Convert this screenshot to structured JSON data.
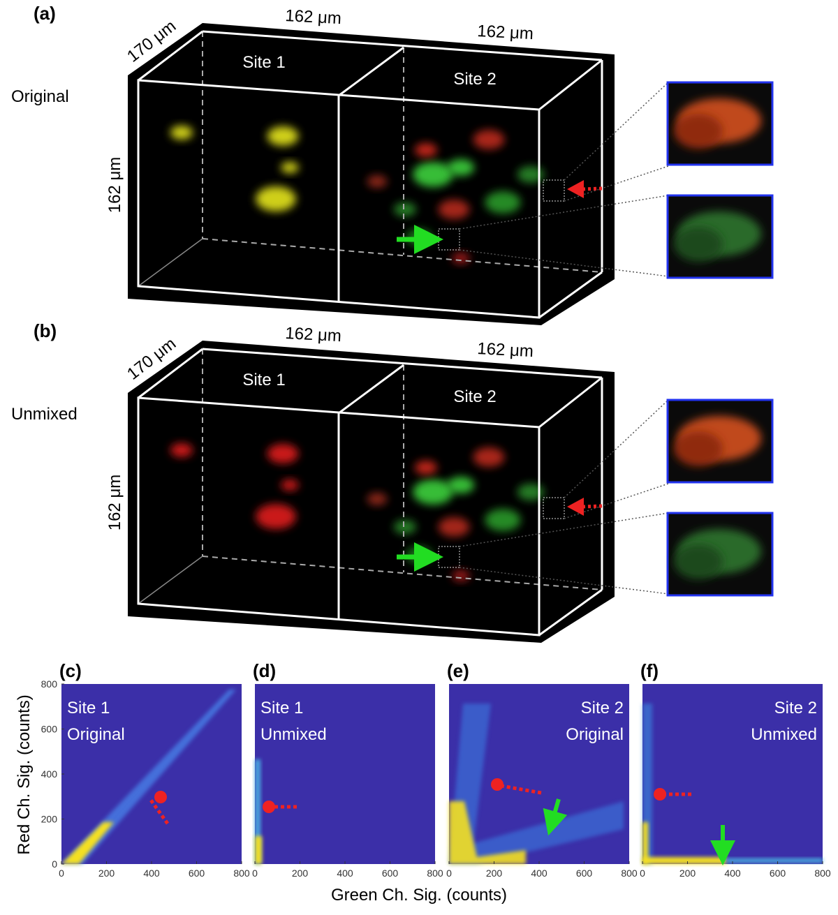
{
  "panels_3d": [
    {
      "label": "(a)",
      "condition": "Original",
      "depth": "170 μm",
      "width_top": "162 μm",
      "width_right": "162 μm",
      "height": "162 μm",
      "sites": [
        "Site 1",
        "Site 2"
      ]
    },
    {
      "label": "(b)",
      "condition": "Unmixed",
      "depth": "170 μm",
      "width_top": "162 μm",
      "width_right": "162 μm",
      "height": "162 μm",
      "sites": [
        "Site 1",
        "Site 2"
      ]
    }
  ],
  "histograms": {
    "x_label": "Green Ch. Sig. (counts)",
    "y_label": "Red Ch. Sig. (counts)",
    "xticks": [
      0,
      200,
      400,
      600,
      800
    ],
    "yticks": [
      0,
      200,
      400,
      600,
      800
    ],
    "panels": [
      {
        "label": "(c)",
        "site": "Site 1",
        "condition": "Original"
      },
      {
        "label": "(d)",
        "site": "Site 1",
        "condition": "Unmixed"
      },
      {
        "label": "(e)",
        "site": "Site 2",
        "condition": "Original"
      },
      {
        "label": "(f)",
        "site": "Site 2",
        "condition": "Unmixed"
      }
    ]
  }
}
